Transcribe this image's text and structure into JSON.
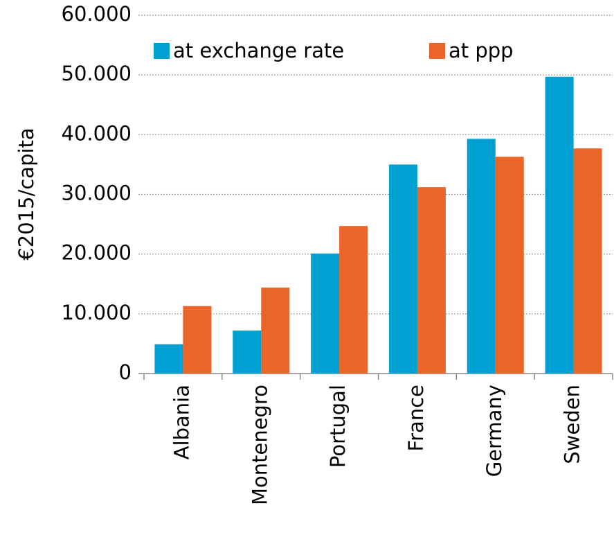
{
  "chart_data": {
    "type": "bar",
    "y_label": "€2015/capita",
    "categories": [
      "Albania",
      "Montenegro",
      "Portugal",
      "France",
      "Germany",
      "Sweden"
    ],
    "series": [
      {
        "name": "at exchange rate",
        "color": "#00a0d2",
        "values": [
          4900,
          7200,
          20100,
          35000,
          39300,
          49700
        ]
      },
      {
        "name": "at ppp",
        "color": "#eb6428",
        "values": [
          11300,
          14400,
          24700,
          31200,
          36300,
          37700
        ]
      }
    ],
    "ylim": [
      0,
      60000
    ],
    "yticks": [
      0,
      {
        "value": 10000,
        "label": "10.000"
      },
      {
        "value": 20000,
        "label": "20.000"
      },
      {
        "value": 30000,
        "label": "30.000"
      },
      {
        "value": 40000,
        "label": "40.000"
      },
      {
        "value": 50000,
        "label": "50.000"
      },
      {
        "value": 60000,
        "label": "60.000"
      }
    ],
    "grid": true,
    "legend": "top-left"
  }
}
